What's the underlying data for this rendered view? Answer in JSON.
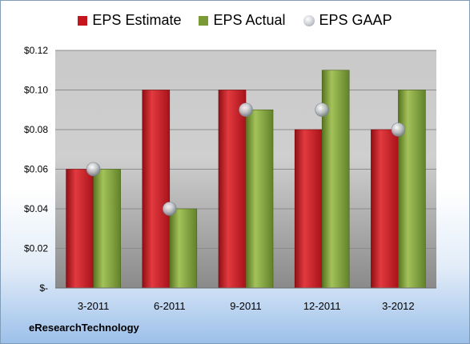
{
  "legend": {
    "estimate": "EPS Estimate",
    "actual": "EPS Actual",
    "gaap": "EPS GAAP"
  },
  "company": "eResearchTechnology",
  "colors": {
    "estimate": "#c4161c",
    "actual": "#7a9a35",
    "gaap": "#b8bcc2"
  },
  "chart_data": {
    "type": "bar",
    "categories": [
      "3-2011",
      "6-2011",
      "9-2011",
      "12-2011",
      "3-2012"
    ],
    "series": [
      {
        "name": "EPS Estimate",
        "type": "bar",
        "values": [
          0.06,
          0.1,
          0.1,
          0.08,
          0.08
        ]
      },
      {
        "name": "EPS Actual",
        "type": "bar",
        "values": [
          0.06,
          0.04,
          0.09,
          0.11,
          0.1
        ]
      },
      {
        "name": "EPS GAAP",
        "type": "scatter",
        "values": [
          0.06,
          0.04,
          0.09,
          0.09,
          0.08
        ]
      }
    ],
    "ylim": [
      0,
      0.12
    ],
    "yticks": [
      0,
      0.02,
      0.04,
      0.06,
      0.08,
      0.1,
      0.12
    ],
    "ytick_labels": [
      "$-",
      "$0.02",
      "$0.04",
      "$0.06",
      "$0.08",
      "$0.10",
      "$0.12"
    ],
    "grid": true,
    "legend_position": "top"
  }
}
